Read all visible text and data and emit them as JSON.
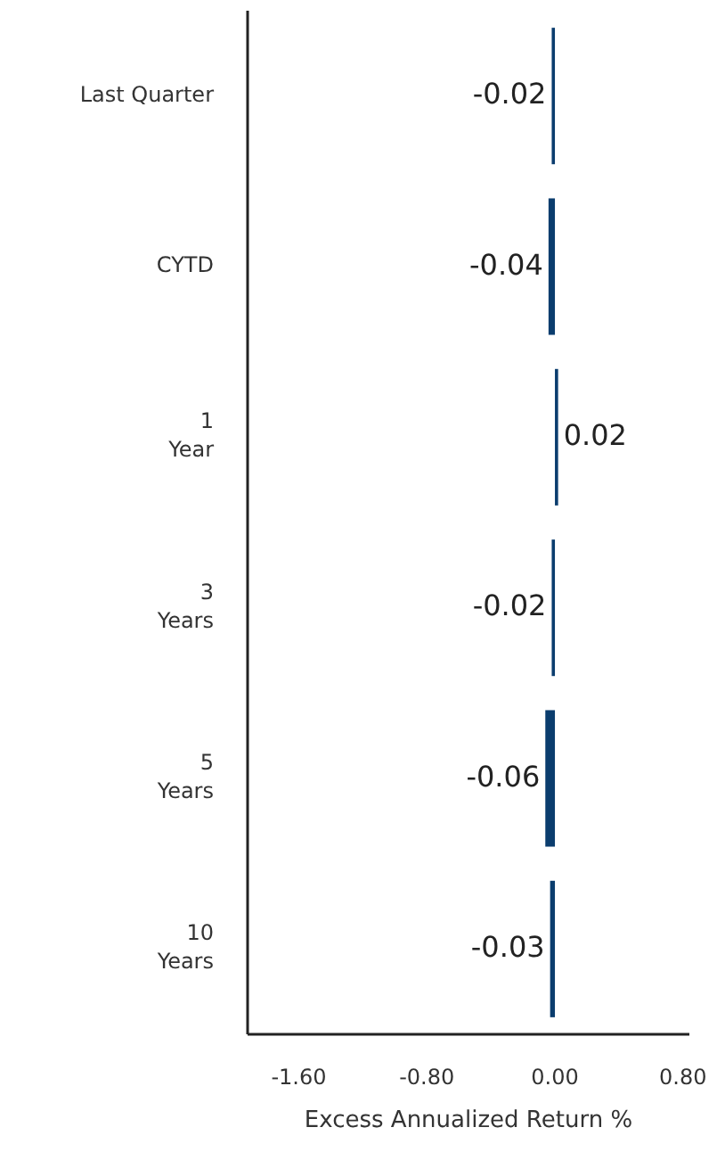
{
  "chart_data": {
    "type": "bar",
    "orientation": "horizontal",
    "xlabel": "Excess Annualized Return %",
    "categories": [
      "Last Quarter",
      "CYTD",
      "1\nYear",
      "3\nYears",
      "5\nYears",
      "10\nYears"
    ],
    "values": [
      -0.02,
      -0.04,
      0.02,
      -0.02,
      -0.06,
      -0.03
    ],
    "color": "#0b3d6e",
    "xlim": [
      -1.92,
      0.84
    ],
    "xticks": [
      {
        "value": -1.6,
        "label": "-1.60"
      },
      {
        "value": -0.8,
        "label": "-0.80"
      },
      {
        "value": 0,
        "label": "0.00"
      },
      {
        "value": 0.8,
        "label": "0.80"
      }
    ],
    "data_labels": true
  }
}
